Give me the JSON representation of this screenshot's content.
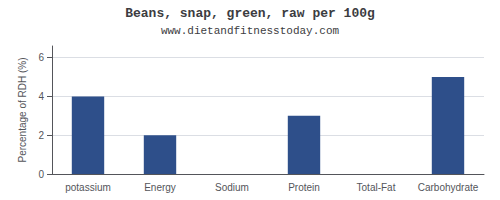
{
  "chart_data": {
    "type": "bar",
    "title": "Beans, snap, green, raw per 100g",
    "subtitle": "www.dietandfitnesstoday.com",
    "ylabel": "Percentage of RDH (%)",
    "categories": [
      "potassium",
      "Energy",
      "Sodium",
      "Protein",
      "Total-Fat",
      "Carbohydrate"
    ],
    "values": [
      4.0,
      2.0,
      0.0,
      3.0,
      0.0,
      5.0
    ],
    "color": "#2e4f8a",
    "ylim": [
      0,
      6.6
    ],
    "yticks": [
      0,
      2,
      4,
      6
    ],
    "grid": true
  }
}
